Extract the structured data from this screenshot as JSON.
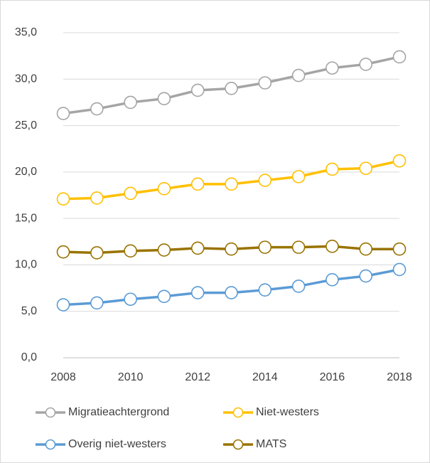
{
  "chart_data": {
    "type": "line",
    "x": [
      2008,
      2009,
      2010,
      2011,
      2012,
      2013,
      2014,
      2015,
      2016,
      2017,
      2018
    ],
    "xlim": [
      2008,
      2018
    ],
    "xticks": [
      2008,
      2010,
      2012,
      2014,
      2016,
      2018
    ],
    "ylim": [
      0,
      35
    ],
    "yticks": [
      {
        "value": 0,
        "label": "0,0"
      },
      {
        "value": 5,
        "label": "5,0"
      },
      {
        "value": 10,
        "label": "10,0"
      },
      {
        "value": 15,
        "label": "15,0"
      },
      {
        "value": 20,
        "label": "20,0"
      },
      {
        "value": 25,
        "label": "25,0"
      },
      {
        "value": 30,
        "label": "30,0"
      },
      {
        "value": 35,
        "label": "35,0"
      }
    ],
    "series": [
      {
        "name": "Migratieachtergrond",
        "color": "#a5a5a5",
        "values": [
          26.3,
          26.8,
          27.5,
          27.9,
          28.8,
          29.0,
          29.6,
          30.4,
          31.2,
          31.6,
          32.4
        ]
      },
      {
        "name": "Niet-westers",
        "color": "#ffc000",
        "values": [
          17.1,
          17.2,
          17.7,
          18.2,
          18.7,
          18.7,
          19.1,
          19.5,
          20.3,
          20.4,
          21.2
        ]
      },
      {
        "name": "Overig niet-westers",
        "color": "#5b9bd5",
        "values": [
          5.7,
          5.9,
          6.3,
          6.6,
          7.0,
          7.0,
          7.3,
          7.7,
          8.4,
          8.8,
          9.5
        ]
      },
      {
        "name": "MATS",
        "color": "#997300",
        "values": [
          11.4,
          11.3,
          11.5,
          11.6,
          11.8,
          11.7,
          11.9,
          11.9,
          12.0,
          11.7,
          11.7
        ]
      }
    ]
  }
}
